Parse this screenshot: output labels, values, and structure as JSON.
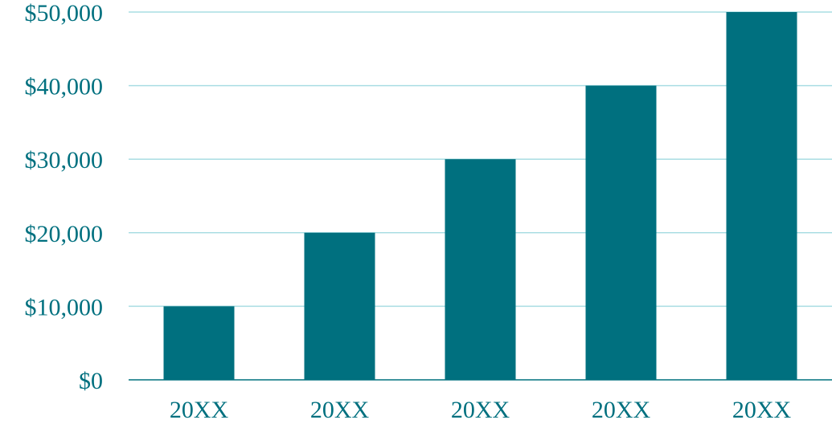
{
  "chart_data": {
    "type": "bar",
    "title": "",
    "xlabel": "",
    "ylabel": "",
    "categories": [
      "20XX",
      "20XX",
      "20XX",
      "20XX",
      "20XX"
    ],
    "values": [
      10000,
      20000,
      30000,
      40000,
      50000
    ],
    "ylim": [
      0,
      50000
    ],
    "yticks": [
      0,
      10000,
      20000,
      30000,
      40000,
      50000
    ],
    "ytick_labels": [
      "$0",
      "$10,000",
      "$20,000",
      "$30,000",
      "$40,000",
      "$50,000"
    ],
    "grid": true,
    "legend": "none"
  },
  "colors": {
    "bar": "#00707f",
    "grid": "#a9dde3",
    "text": "#00707f"
  }
}
